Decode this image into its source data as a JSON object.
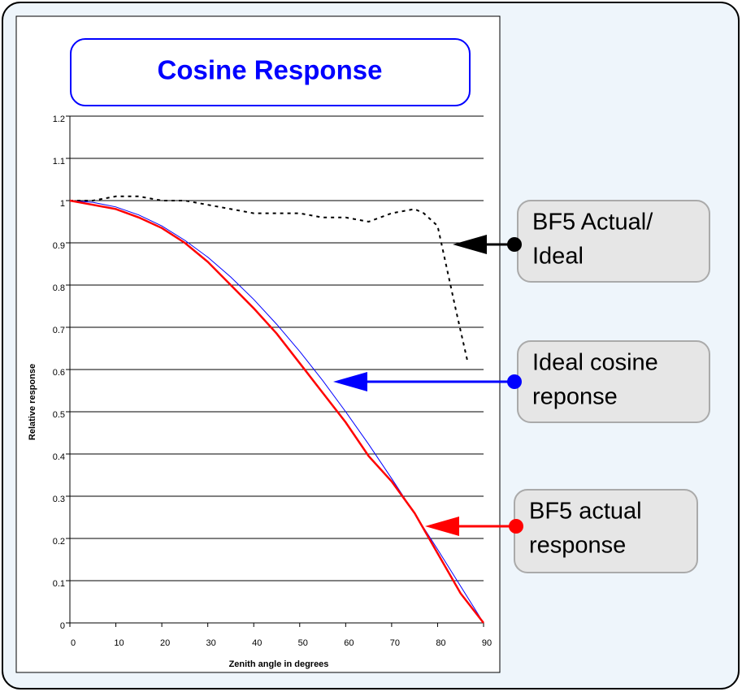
{
  "chart_data": {
    "type": "line",
    "title": "Cosine Response",
    "xlabel": "Zenith angle in degrees",
    "ylabel": "Relative response",
    "xlim": [
      0,
      90
    ],
    "ylim": [
      0,
      1.2
    ],
    "xticks": [
      0,
      10,
      20,
      30,
      40,
      50,
      60,
      70,
      80,
      90
    ],
    "yticks": [
      0,
      0.1,
      0.2,
      0.3,
      0.4,
      0.5,
      0.6,
      0.7,
      0.8,
      0.9,
      1,
      1.1,
      1.2
    ],
    "grid": true,
    "series": [
      {
        "name": "BF5 Actual/ Ideal",
        "color": "#000000",
        "style": "dotted",
        "x": [
          0,
          5,
          10,
          15,
          20,
          25,
          30,
          35,
          40,
          45,
          50,
          55,
          60,
          65,
          70,
          75,
          77,
          80,
          82,
          84,
          86.5
        ],
        "values": [
          1.0,
          1.0,
          1.01,
          1.01,
          1.0,
          1.0,
          0.99,
          0.98,
          0.97,
          0.97,
          0.97,
          0.96,
          0.96,
          0.95,
          0.97,
          0.98,
          0.97,
          0.94,
          0.84,
          0.74,
          0.62
        ]
      },
      {
        "name": "Ideal cosine reponse",
        "color": "#0000ff",
        "style": "solid",
        "width": 1,
        "x": [
          0,
          5,
          10,
          15,
          20,
          25,
          30,
          35,
          40,
          45,
          50,
          55,
          60,
          65,
          70,
          75,
          80,
          85,
          90
        ],
        "values": [
          1,
          0.996,
          0.985,
          0.966,
          0.94,
          0.906,
          0.866,
          0.819,
          0.766,
          0.707,
          0.643,
          0.574,
          0.5,
          0.423,
          0.342,
          0.259,
          0.174,
          0.087,
          0
        ]
      },
      {
        "name": "BF5 actual response",
        "color": "#ff0000",
        "style": "solid",
        "width": 2.5,
        "x": [
          0,
          5,
          10,
          15,
          20,
          25,
          30,
          35,
          40,
          45,
          50,
          55,
          60,
          65,
          70,
          75,
          80,
          85,
          90
        ],
        "values": [
          1.0,
          0.99,
          0.98,
          0.96,
          0.935,
          0.9,
          0.855,
          0.8,
          0.745,
          0.685,
          0.615,
          0.545,
          0.475,
          0.395,
          0.335,
          0.26,
          0.165,
          0.07,
          0
        ]
      }
    ],
    "annotations": [
      {
        "text": [
          "BF5 Actual/",
          "Ideal"
        ],
        "color": "#000000"
      },
      {
        "text": [
          "Ideal cosine",
          "reponse"
        ],
        "color": "#0000ff"
      },
      {
        "text": [
          "BF5 actual",
          "response"
        ],
        "color": "#ff0000"
      }
    ]
  }
}
